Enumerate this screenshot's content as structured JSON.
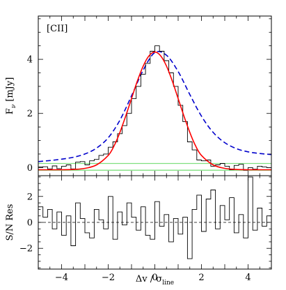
{
  "chart_data": [
    {
      "panel": "top",
      "type": "line",
      "annotation": "[CII]",
      "ylabel": "F_ν [mJy]",
      "ylabel_main": "F",
      "ylabel_sub": "ν",
      "ylabel_unit": "[mJy]",
      "xlim": [
        -5,
        5
      ],
      "ylim": [
        -0.3,
        5.6
      ],
      "xticks": [
        -4,
        -2,
        0,
        2,
        4
      ],
      "yticks": [
        0,
        2,
        4
      ],
      "yticks_labels": [
        "0",
        "2",
        "4"
      ],
      "grid": false,
      "colors": {
        "data": "#000000",
        "fit": "#ff0000",
        "model": "#0000cc",
        "bands": "#7fe07f"
      },
      "series": [
        {
          "style": "histogram",
          "x": [
            -5.0,
            -4.8,
            -4.6,
            -4.4,
            -4.2,
            -4.0,
            -3.8,
            -3.6,
            -3.4,
            -3.2,
            -3.0,
            -2.8,
            -2.6,
            -2.4,
            -2.2,
            -2.0,
            -1.8,
            -1.6,
            -1.4,
            -1.2,
            -1.0,
            -0.8,
            -0.6,
            -0.4,
            -0.2,
            0.0,
            0.2,
            0.4,
            0.6,
            0.8,
            1.0,
            1.2,
            1.4,
            1.6,
            1.8,
            2.0,
            2.2,
            2.4,
            2.6,
            2.8,
            3.0,
            3.2,
            3.4,
            3.6,
            3.8,
            4.0,
            4.2,
            4.4,
            4.6,
            4.8
          ],
          "y": [
            0.02,
            0.03,
            -0.05,
            0.06,
            -0.04,
            0.05,
            0.1,
            -0.05,
            0.2,
            0.22,
            0.1,
            0.25,
            0.3,
            0.45,
            0.5,
            0.75,
            0.95,
            1.25,
            1.55,
            2.0,
            2.55,
            3.0,
            3.45,
            3.85,
            4.3,
            4.5,
            4.3,
            3.95,
            3.5,
            3.0,
            2.3,
            1.7,
            0.95,
            0.65,
            0.28,
            0.25,
            0.28,
            0.05,
            0.1,
            0.15,
            0.05,
            -0.08,
            0.08,
            0.12,
            -0.1,
            0.0,
            -0.06,
            0.05,
            0.02,
            0.0
          ]
        },
        {
          "style": "solid",
          "x": [
            -5.0,
            -4.5,
            -4.0,
            -3.5,
            -3.0,
            -2.5,
            -2.0,
            -1.75,
            -1.5,
            -1.25,
            -1.0,
            -0.75,
            -0.5,
            -0.25,
            0.0,
            0.25,
            0.5,
            0.75,
            1.0,
            1.25,
            1.5,
            1.75,
            2.0,
            2.5,
            3.0,
            3.5,
            4.0,
            4.5,
            5.0
          ],
          "y": [
            -0.08,
            -0.08,
            -0.08,
            -0.07,
            -0.03,
            0.1,
            0.45,
            0.8,
            1.3,
            1.9,
            2.55,
            3.2,
            3.75,
            4.13,
            4.27,
            4.13,
            3.75,
            3.2,
            2.55,
            1.9,
            1.3,
            0.8,
            0.45,
            0.1,
            -0.03,
            -0.07,
            -0.08,
            -0.08,
            -0.08
          ]
        },
        {
          "style": "dashed",
          "x": [
            -5.0,
            -4.5,
            -4.0,
            -3.5,
            -3.0,
            -2.5,
            -2.0,
            -1.5,
            -1.0,
            -0.5,
            0.0,
            0.5,
            1.0,
            1.5,
            2.0,
            2.5,
            3.0,
            3.5,
            4.0,
            4.5,
            5.0
          ],
          "y": [
            0.22,
            0.26,
            0.31,
            0.38,
            0.5,
            0.72,
            1.1,
            1.75,
            2.65,
            3.6,
            4.25,
            4.15,
            3.55,
            2.7,
            1.9,
            1.3,
            0.92,
            0.7,
            0.58,
            0.52,
            0.48
          ]
        },
        {
          "style": "band-line",
          "x": [
            -5.0,
            5.0
          ],
          "y": [
            0.15,
            0.15
          ]
        },
        {
          "style": "band-line",
          "x": [
            -5.0,
            5.0
          ],
          "y": [
            -0.1,
            -0.1
          ]
        }
      ]
    },
    {
      "panel": "bottom",
      "type": "line",
      "ylabel": "S/N Res",
      "xlabel": "Δv / σ_line",
      "xlabel_main": "Δv / σ",
      "xlabel_sub": "line",
      "xlim": [
        -5,
        5
      ],
      "ylim": [
        -3.6,
        3.6
      ],
      "xticks": [
        -4,
        -2,
        0,
        2,
        4
      ],
      "xticks_labels": [
        "−4",
        "−2",
        "0",
        "2",
        "4"
      ],
      "yticks": [
        -2,
        0,
        2
      ],
      "yticks_labels": [
        "−2",
        "0",
        "2"
      ],
      "zero_line": 0,
      "grid": false,
      "series": [
        {
          "style": "histogram",
          "x": [
            -5.0,
            -4.8,
            -4.6,
            -4.4,
            -4.2,
            -4.0,
            -3.8,
            -3.6,
            -3.4,
            -3.2,
            -3.0,
            -2.8,
            -2.6,
            -2.4,
            -2.2,
            -2.0,
            -1.8,
            -1.6,
            -1.4,
            -1.2,
            -1.0,
            -0.8,
            -0.6,
            -0.4,
            -0.2,
            0.0,
            0.2,
            0.4,
            0.6,
            0.8,
            1.0,
            1.2,
            1.4,
            1.6,
            1.8,
            2.0,
            2.2,
            2.4,
            2.6,
            2.8,
            3.0,
            3.2,
            3.4,
            3.6,
            3.8,
            4.0,
            4.2,
            4.4,
            4.6,
            4.8
          ],
          "y": [
            1.2,
            0.4,
            1.0,
            -0.5,
            0.8,
            -1.0,
            0.5,
            -1.8,
            1.5,
            0.3,
            -0.8,
            -1.2,
            1.0,
            0.2,
            -0.5,
            2.0,
            -1.3,
            0.8,
            -0.2,
            1.5,
            0.4,
            -0.6,
            1.2,
            -1.0,
            -1.3,
            1.6,
            -0.3,
            0.6,
            -1.5,
            0.3,
            -0.9,
            0.4,
            -2.8,
            1.0,
            2.1,
            -0.7,
            1.8,
            2.5,
            -0.5,
            1.3,
            0.2,
            1.9,
            -0.8,
            0.6,
            -1.2,
            3.5,
            -0.6,
            1.1,
            -0.3,
            0.5
          ]
        }
      ]
    }
  ]
}
